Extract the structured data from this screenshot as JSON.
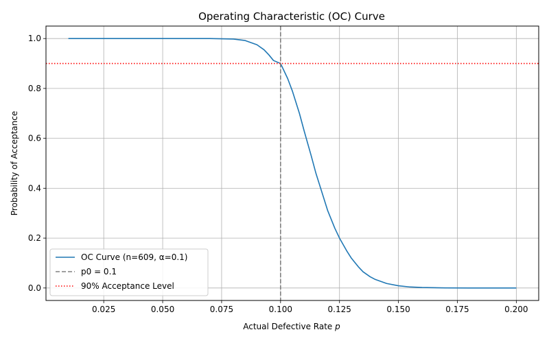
{
  "chart_data": {
    "type": "line",
    "title": "Operating Characteristic (OC) Curve",
    "xlabel": "Actual Defective Rate",
    "xlabel_var": "p",
    "ylabel": "Probability of Acceptance",
    "xlim": [
      0.0005,
      0.2095
    ],
    "ylim": [
      -0.05,
      1.05
    ],
    "xticks": [
      0.025,
      0.05,
      0.075,
      0.1,
      0.125,
      0.15,
      0.175,
      0.2
    ],
    "xtick_labels": [
      "0.025",
      "0.050",
      "0.075",
      "0.100",
      "0.125",
      "0.150",
      "0.175",
      "0.200"
    ],
    "yticks": [
      0.0,
      0.2,
      0.4,
      0.6,
      0.8,
      1.0
    ],
    "ytick_labels": [
      "0.0",
      "0.2",
      "0.4",
      "0.6",
      "0.8",
      "1.0"
    ],
    "grid": true,
    "legend_position": "lower-left",
    "series": [
      {
        "name": "OC Curve (n=609, α=0.1)",
        "color": "#1f77b4",
        "style": "solid",
        "x": [
          0.01,
          0.07,
          0.08,
          0.085,
          0.09,
          0.093,
          0.095,
          0.097,
          0.1,
          0.103,
          0.105,
          0.108,
          0.11,
          0.113,
          0.115,
          0.118,
          0.12,
          0.123,
          0.125,
          0.128,
          0.13,
          0.133,
          0.135,
          0.138,
          0.14,
          0.145,
          0.15,
          0.155,
          0.16,
          0.17,
          0.18,
          0.2
        ],
        "y": [
          1.0,
          1.0,
          0.998,
          0.992,
          0.975,
          0.955,
          0.935,
          0.912,
          0.9,
          0.84,
          0.79,
          0.7,
          0.63,
          0.53,
          0.46,
          0.37,
          0.31,
          0.24,
          0.2,
          0.15,
          0.12,
          0.085,
          0.065,
          0.045,
          0.035,
          0.018,
          0.009,
          0.004,
          0.002,
          0.0005,
          0.0001,
          0.0
        ]
      },
      {
        "name": "p0 = 0.1",
        "color": "#808080",
        "style": "dashed",
        "vertical_x": 0.1
      },
      {
        "name": "90% Acceptance Level",
        "color": "#ff0000",
        "style": "dotted",
        "horizontal_y": 0.9
      }
    ]
  }
}
